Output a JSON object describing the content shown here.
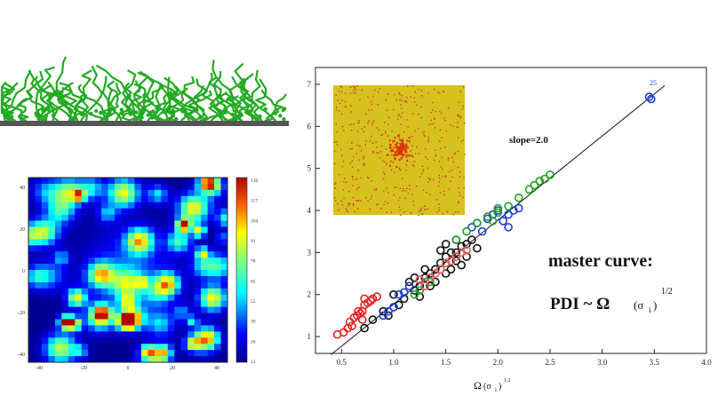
{
  "brush_panel": {
    "substrate_color": "#555555",
    "chain_color": "#22aa22"
  },
  "heatmap": {
    "colorbar_ticks": [
      "130",
      "117",
      "104",
      "91",
      "78",
      "65",
      "52",
      "39",
      "26",
      "13"
    ],
    "y_ticks": [
      "40",
      "20",
      "0",
      "-20",
      "-40"
    ],
    "x_ticks": [
      "-40",
      "-20",
      "0",
      "20",
      "40"
    ]
  },
  "chart_data": {
    "type": "scatter",
    "title": "",
    "xlabel": "Ω (σ_i)^1/2",
    "ylabel": "",
    "xlim": [
      0.25,
      4.0
    ],
    "ylim": [
      0.6,
      7.4
    ],
    "x_ticks": [
      "0.5",
      "1.0",
      "1.5",
      "2.0",
      "2.5",
      "3.0",
      "3.5",
      "4.0"
    ],
    "y_ticks": [
      "1",
      "2",
      "3",
      "4",
      "5",
      "6",
      "7"
    ],
    "annotations": {
      "slope": "slope=2.0",
      "master_line1": "master curve:",
      "master_line2_prefix": "PDI ~ Ω",
      "master_sigma": "(σ",
      "master_sub": "i",
      "master_close": ")",
      "master_exp": "1/2",
      "xlabel_main": "Ω",
      "xlabel_sigma": "(σ",
      "xlabel_sub": "i",
      "xlabel_close": ")",
      "xlabel_exp": "1/2",
      "point_label": "25"
    },
    "fit_line": {
      "slope": 2.0,
      "intercept": -0.23,
      "x_range": [
        0.4,
        3.6
      ]
    },
    "series": [
      {
        "color": "#e82020",
        "points": [
          [
            0.46,
            1.05
          ],
          [
            0.52,
            1.1
          ],
          [
            0.56,
            1.2
          ],
          [
            0.6,
            1.25
          ],
          [
            0.62,
            1.45
          ],
          [
            0.65,
            1.5
          ],
          [
            0.68,
            1.55
          ],
          [
            0.7,
            1.6
          ],
          [
            0.72,
            1.75
          ],
          [
            0.75,
            1.8
          ],
          [
            0.78,
            1.85
          ],
          [
            0.8,
            1.9
          ],
          [
            0.66,
            1.6
          ],
          [
            0.72,
            1.9
          ],
          [
            0.58,
            1.35
          ],
          [
            0.84,
            1.95
          ],
          [
            0.7,
            1.4
          ]
        ]
      },
      {
        "color": "#111111",
        "points": [
          [
            0.72,
            1.2
          ],
          [
            0.8,
            1.4
          ],
          [
            0.9,
            1.6
          ],
          [
            1.0,
            1.7
          ],
          [
            1.1,
            1.9
          ],
          [
            1.2,
            2.1
          ],
          [
            1.25,
            2.2
          ],
          [
            1.3,
            2.4
          ],
          [
            1.35,
            2.5
          ],
          [
            1.4,
            2.6
          ],
          [
            1.45,
            2.75
          ],
          [
            1.5,
            2.9
          ],
          [
            1.55,
            3.0
          ],
          [
            1.6,
            3.0
          ],
          [
            1.65,
            3.15
          ],
          [
            1.7,
            3.2
          ],
          [
            1.5,
            2.5
          ],
          [
            1.4,
            2.3
          ],
          [
            1.6,
            2.8
          ],
          [
            1.75,
            3.3
          ],
          [
            1.8,
            3.1
          ],
          [
            1.2,
            2.4
          ],
          [
            1.0,
            2.0
          ],
          [
            1.3,
            2.6
          ],
          [
            1.45,
            3.05
          ],
          [
            1.6,
            3.3
          ],
          [
            1.7,
            2.9
          ],
          [
            1.55,
            2.6
          ],
          [
            1.35,
            2.2
          ],
          [
            1.25,
            1.95
          ],
          [
            1.15,
            2.3
          ],
          [
            1.05,
            1.75
          ],
          [
            0.95,
            1.5
          ],
          [
            1.5,
            3.2
          ],
          [
            1.65,
            2.7
          ]
        ]
      },
      {
        "color": "#2040e0",
        "points": [
          [
            0.9,
            1.5
          ],
          [
            0.95,
            1.6
          ],
          [
            1.0,
            1.7
          ],
          [
            1.05,
            2.0
          ],
          [
            1.1,
            2.05
          ],
          [
            1.15,
            2.2
          ],
          [
            1.75,
            3.6
          ],
          [
            1.8,
            3.7
          ],
          [
            1.9,
            3.8
          ],
          [
            1.95,
            3.9
          ],
          [
            2.0,
            4.0
          ],
          [
            2.05,
            3.75
          ],
          [
            2.1,
            3.9
          ],
          [
            2.15,
            4.0
          ],
          [
            2.2,
            4.05
          ],
          [
            1.85,
            3.5
          ],
          [
            2.1,
            3.6
          ],
          [
            3.45,
            6.7
          ],
          [
            3.47,
            6.65
          ]
        ]
      },
      {
        "color": "#20a020",
        "points": [
          [
            1.2,
            2.0
          ],
          [
            1.25,
            2.1
          ],
          [
            1.3,
            2.2
          ],
          [
            1.35,
            2.3
          ],
          [
            1.6,
            3.3
          ],
          [
            1.7,
            3.5
          ],
          [
            1.8,
            3.7
          ],
          [
            1.9,
            3.85
          ],
          [
            2.0,
            3.95
          ],
          [
            2.1,
            4.1
          ],
          [
            2.2,
            4.3
          ],
          [
            2.3,
            4.5
          ],
          [
            2.35,
            4.6
          ],
          [
            2.4,
            4.7
          ],
          [
            2.45,
            4.75
          ],
          [
            2.5,
            4.85
          ],
          [
            2.0,
            4.05
          ],
          [
            1.95,
            3.75
          ]
        ]
      },
      {
        "color": "#e06060",
        "points": [
          [
            1.3,
            2.2
          ],
          [
            1.35,
            2.4
          ],
          [
            1.4,
            2.5
          ],
          [
            1.45,
            2.6
          ],
          [
            1.5,
            2.75
          ],
          [
            1.55,
            2.8
          ],
          [
            1.6,
            2.9
          ],
          [
            1.65,
            3.0
          ],
          [
            1.7,
            3.05
          ],
          [
            1.25,
            2.35
          ]
        ]
      }
    ]
  }
}
